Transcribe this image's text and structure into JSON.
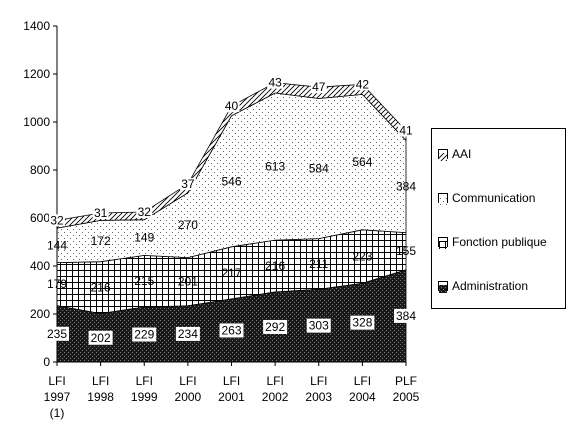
{
  "chart_data": {
    "type": "area",
    "stacked": true,
    "categories": [
      [
        "LFI",
        "1997",
        "(1)"
      ],
      [
        "LFI",
        "1998"
      ],
      [
        "LFI",
        "1999"
      ],
      [
        "LFI",
        "2000"
      ],
      [
        "LFI",
        "2001"
      ],
      [
        "LFI",
        "2002"
      ],
      [
        "LFI",
        "2003"
      ],
      [
        "LFI",
        "2004"
      ],
      [
        "PLF",
        "2005"
      ]
    ],
    "series": [
      {
        "name": "Administration",
        "values": [
          235,
          202,
          229,
          234,
          263,
          292,
          303,
          328,
          384
        ],
        "pattern": "dark",
        "label_bg": true
      },
      {
        "name": "Fonction publique",
        "values": [
          179,
          216,
          215,
          201,
          217,
          216,
          211,
          223,
          155
        ],
        "pattern": "grid"
      },
      {
        "name": "Communication",
        "values": [
          144,
          172,
          149,
          270,
          546,
          613,
          584,
          564,
          384
        ],
        "pattern": "dots"
      },
      {
        "name": "AAI",
        "values": [
          32,
          31,
          32,
          37,
          40,
          43,
          47,
          42,
          41
        ],
        "pattern": "hatch"
      }
    ],
    "ylim": [
      0,
      1400
    ],
    "yticks": [
      0,
      200,
      400,
      600,
      800,
      1000,
      1200,
      1400
    ],
    "legend": [
      "AAI",
      "Communication",
      "Fonction publique",
      "Administration"
    ],
    "legend_position": "right",
    "grid": false,
    "title": "",
    "xlabel": "",
    "ylabel": ""
  }
}
